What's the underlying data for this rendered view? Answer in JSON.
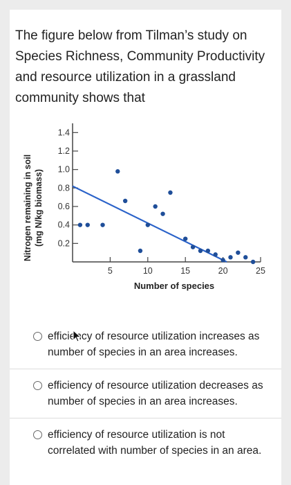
{
  "question": {
    "text": "The figure below from Tilman’s study on Species Richness, Community Productivity and resource utilization in a grassland community shows that"
  },
  "chart_data": {
    "type": "scatter",
    "ylabel_line1": "Nitrogen remaining in soil",
    "ylabel_line2": "(mg N/kg biomass)",
    "xlabel": "Number of species",
    "xlim": [
      0,
      25
    ],
    "ylim": [
      0,
      1.5
    ],
    "x_ticks": [
      "5",
      "10",
      "15",
      "20",
      "25"
    ],
    "y_ticks": [
      "1.4",
      "1.2",
      "1.0",
      "0.8",
      "0.6",
      "0.4",
      "0.2"
    ],
    "points": [
      {
        "x": 1,
        "y": 0.4
      },
      {
        "x": 2,
        "y": 0.4
      },
      {
        "x": 4,
        "y": 0.4
      },
      {
        "x": 6,
        "y": 0.98
      },
      {
        "x": 7,
        "y": 0.66
      },
      {
        "x": 9,
        "y": 0.12
      },
      {
        "x": 10,
        "y": 0.4
      },
      {
        "x": 11,
        "y": 0.6
      },
      {
        "x": 12,
        "y": 0.52
      },
      {
        "x": 13,
        "y": 0.75
      },
      {
        "x": 15,
        "y": 0.25
      },
      {
        "x": 16,
        "y": 0.16
      },
      {
        "x": 17,
        "y": 0.12
      },
      {
        "x": 18,
        "y": 0.12
      },
      {
        "x": 19,
        "y": 0.08
      },
      {
        "x": 20,
        "y": 0.02
      },
      {
        "x": 21,
        "y": 0.05
      },
      {
        "x": 22,
        "y": 0.1
      },
      {
        "x": 23,
        "y": 0.05
      },
      {
        "x": 24,
        "y": 0.0
      }
    ],
    "trendline": [
      {
        "x": 0,
        "y": 0.82
      },
      {
        "x": 20.5,
        "y": 0.0
      }
    ],
    "grid": false,
    "colors": {
      "points": "#1f4e99",
      "line": "#2a62c9",
      "axis": "#444444"
    }
  },
  "options": [
    {
      "label": "efficiency of resource utilization increases as number of species in an area increases."
    },
    {
      "label": "efficiency of resource utilization decreases as number of species in an area increases."
    },
    {
      "label": "efficiency of resource utilization is not correlated with number of species in an area."
    }
  ]
}
